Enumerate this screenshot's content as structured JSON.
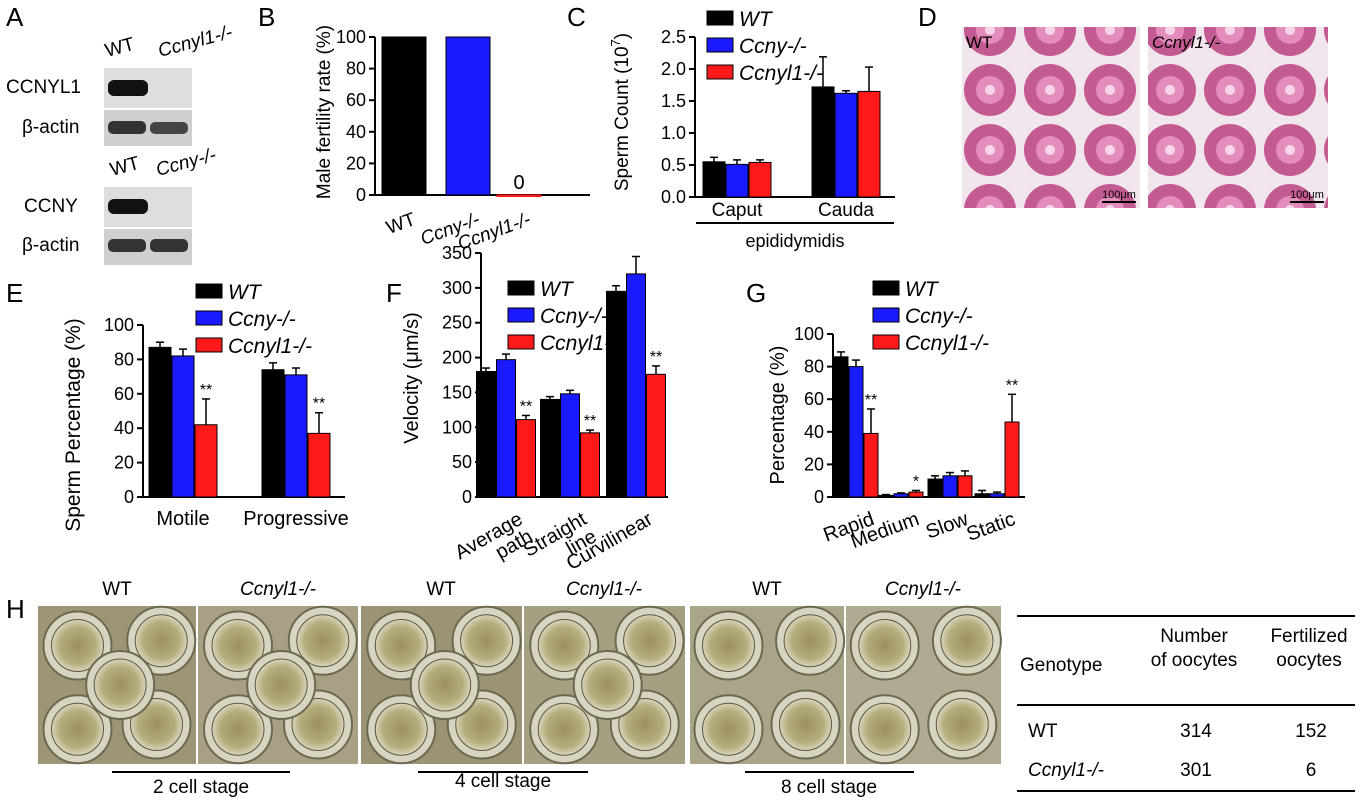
{
  "panels": {
    "A": {
      "letter": "A",
      "blot1": {
        "lanes": [
          "WT",
          "Ccnyl1-/-"
        ],
        "rows": [
          "CCNYL1",
          "β-actin"
        ]
      },
      "blot2": {
        "lanes": [
          "WT",
          "Ccny-/-"
        ],
        "rows": [
          "CCNY",
          "β-actin"
        ]
      }
    },
    "B": {
      "letter": "B"
    },
    "C": {
      "letter": "C",
      "group_label": "epididymidis"
    },
    "D": {
      "letter": "D",
      "labels": [
        "WT",
        "Ccnyl1-/-"
      ],
      "scalebar": "100μm"
    },
    "E": {
      "letter": "E"
    },
    "F": {
      "letter": "F"
    },
    "G": {
      "letter": "G"
    },
    "H": {
      "letter": "H",
      "stages": [
        {
          "label": "2 cell stage",
          "genotypes": [
            "WT",
            "Ccnyl1-/-"
          ]
        },
        {
          "label": "4 cell stage",
          "genotypes": [
            "WT",
            "Ccnyl1-/-"
          ]
        },
        {
          "label": "8 cell stage",
          "genotypes": [
            "WT",
            "Ccnyl1-/-"
          ]
        }
      ],
      "table": {
        "headers": [
          "Genotype",
          "Number of oocytes",
          "Fertilized oocytes"
        ],
        "rows": [
          [
            "WT",
            "314",
            "152"
          ],
          [
            "Ccnyl1-/-",
            "301",
            "6"
          ]
        ]
      }
    }
  },
  "colors": {
    "WT": "#000000",
    "Ccny": "#1a1aff",
    "Ccnyl1": "#ff1a1a"
  },
  "chart_data": [
    {
      "id": "B",
      "type": "bar",
      "ylabel": "Male fertility rate (%)",
      "ylim": [
        0,
        100
      ],
      "yticks": [
        0,
        20,
        40,
        60,
        80,
        100
      ],
      "categories": [
        "WT",
        "Ccny-/-",
        "Ccnyl1-/-"
      ],
      "values": [
        100,
        100,
        0
      ],
      "data_labels": [
        "",
        "",
        "0"
      ]
    },
    {
      "id": "C",
      "type": "bar",
      "ylabel": "Sperm Count (10^7)",
      "ylim": [
        0,
        2.5
      ],
      "yticks": [
        0.0,
        0.5,
        1.0,
        1.5,
        2.0,
        2.5
      ],
      "categories": [
        "Caput",
        "Cauda"
      ],
      "series": [
        {
          "name": "WT",
          "values": [
            0.55,
            1.72
          ],
          "errors": [
            0.07,
            0.47
          ]
        },
        {
          "name": "Ccny-/-",
          "values": [
            0.51,
            1.62
          ],
          "errors": [
            0.07,
            0.04
          ]
        },
        {
          "name": "Ccnyl1-/-",
          "values": [
            0.54,
            1.65
          ],
          "errors": [
            0.04,
            0.38
          ]
        }
      ]
    },
    {
      "id": "E",
      "type": "bar",
      "ylabel": "Sperm Percentage (%)",
      "ylim": [
        0,
        100
      ],
      "yticks": [
        0,
        20,
        40,
        60,
        80,
        100
      ],
      "categories": [
        "Motile",
        "Progressive"
      ],
      "series": [
        {
          "name": "WT",
          "values": [
            87,
            74
          ],
          "errors": [
            3,
            4
          ]
        },
        {
          "name": "Ccny-/-",
          "values": [
            82,
            71
          ],
          "errors": [
            4,
            4
          ]
        },
        {
          "name": "Ccnyl1-/-",
          "values": [
            42,
            37
          ],
          "errors": [
            15,
            12
          ]
        }
      ],
      "annotations": [
        [
          "",
          "",
          "**"
        ],
        [
          "",
          "",
          "**"
        ]
      ]
    },
    {
      "id": "F",
      "type": "bar",
      "ylabel": "Velocity (μm/s)",
      "ylim": [
        0,
        350
      ],
      "yticks": [
        0,
        50,
        100,
        150,
        200,
        250,
        300,
        350
      ],
      "categories": [
        "Average path",
        "Straight line",
        "Curvilinear"
      ],
      "series": [
        {
          "name": "WT",
          "values": [
            180,
            140,
            295
          ],
          "errors": [
            5,
            4,
            8
          ]
        },
        {
          "name": "Ccny-/-",
          "values": [
            197,
            148,
            320
          ],
          "errors": [
            8,
            5,
            25
          ]
        },
        {
          "name": "Ccnyl1-/-",
          "values": [
            111,
            92,
            176
          ],
          "errors": [
            6,
            4,
            12
          ]
        }
      ],
      "annotations": [
        [
          "",
          "",
          "**"
        ],
        [
          "",
          "",
          "**"
        ],
        [
          "",
          "",
          "**"
        ]
      ]
    },
    {
      "id": "G",
      "type": "bar",
      "ylabel": "Percentage (%)",
      "ylim": [
        0,
        100
      ],
      "yticks": [
        0,
        20,
        40,
        60,
        80,
        100
      ],
      "categories": [
        "Rapid",
        "Medium",
        "Slow",
        "Static"
      ],
      "series": [
        {
          "name": "WT",
          "values": [
            86,
            1,
            11,
            2
          ],
          "errors": [
            3,
            0.5,
            2,
            2
          ]
        },
        {
          "name": "Ccny-/-",
          "values": [
            80,
            2,
            13,
            2
          ],
          "errors": [
            4,
            0.5,
            2,
            1
          ]
        },
        {
          "name": "Ccnyl1-/-",
          "values": [
            39,
            3,
            13,
            46
          ],
          "errors": [
            15,
            1,
            3,
            17
          ]
        }
      ],
      "annotations": [
        [
          "",
          "",
          "**"
        ],
        [
          "",
          "",
          "*"
        ],
        [
          "",
          "",
          ""
        ],
        [
          "",
          "",
          "**"
        ]
      ]
    }
  ]
}
